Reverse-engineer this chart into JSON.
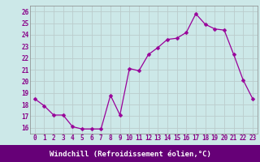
{
  "x": [
    0,
    1,
    2,
    3,
    4,
    5,
    6,
    7,
    8,
    9,
    10,
    11,
    12,
    13,
    14,
    15,
    16,
    17,
    18,
    19,
    20,
    21,
    22,
    23
  ],
  "y": [
    18.5,
    17.9,
    17.1,
    17.1,
    16.1,
    15.9,
    15.9,
    15.9,
    18.8,
    17.1,
    21.1,
    20.9,
    22.3,
    22.9,
    23.6,
    23.7,
    24.2,
    25.8,
    24.9,
    24.5,
    24.4,
    22.3,
    20.1,
    18.5
  ],
  "line_color": "#990099",
  "marker": "D",
  "marker_size": 2.5,
  "bg_color": "#cce8e8",
  "grid_color": "#bbcccc",
  "bottom_bar_color": "#660077",
  "xlabel": "Windchill (Refroidissement éolien,°C)",
  "ylim": [
    15.5,
    26.5
  ],
  "xlim": [
    -0.5,
    23.5
  ],
  "yticks": [
    16,
    17,
    18,
    19,
    20,
    21,
    22,
    23,
    24,
    25,
    26
  ],
  "xticks": [
    0,
    1,
    2,
    3,
    4,
    5,
    6,
    7,
    8,
    9,
    10,
    11,
    12,
    13,
    14,
    15,
    16,
    17,
    18,
    19,
    20,
    21,
    22,
    23
  ],
  "tick_fontsize": 5.5,
  "xlabel_fontsize": 6.5,
  "tick_color": "#880088",
  "label_color": "#ffffff",
  "spine_color": "#888888"
}
